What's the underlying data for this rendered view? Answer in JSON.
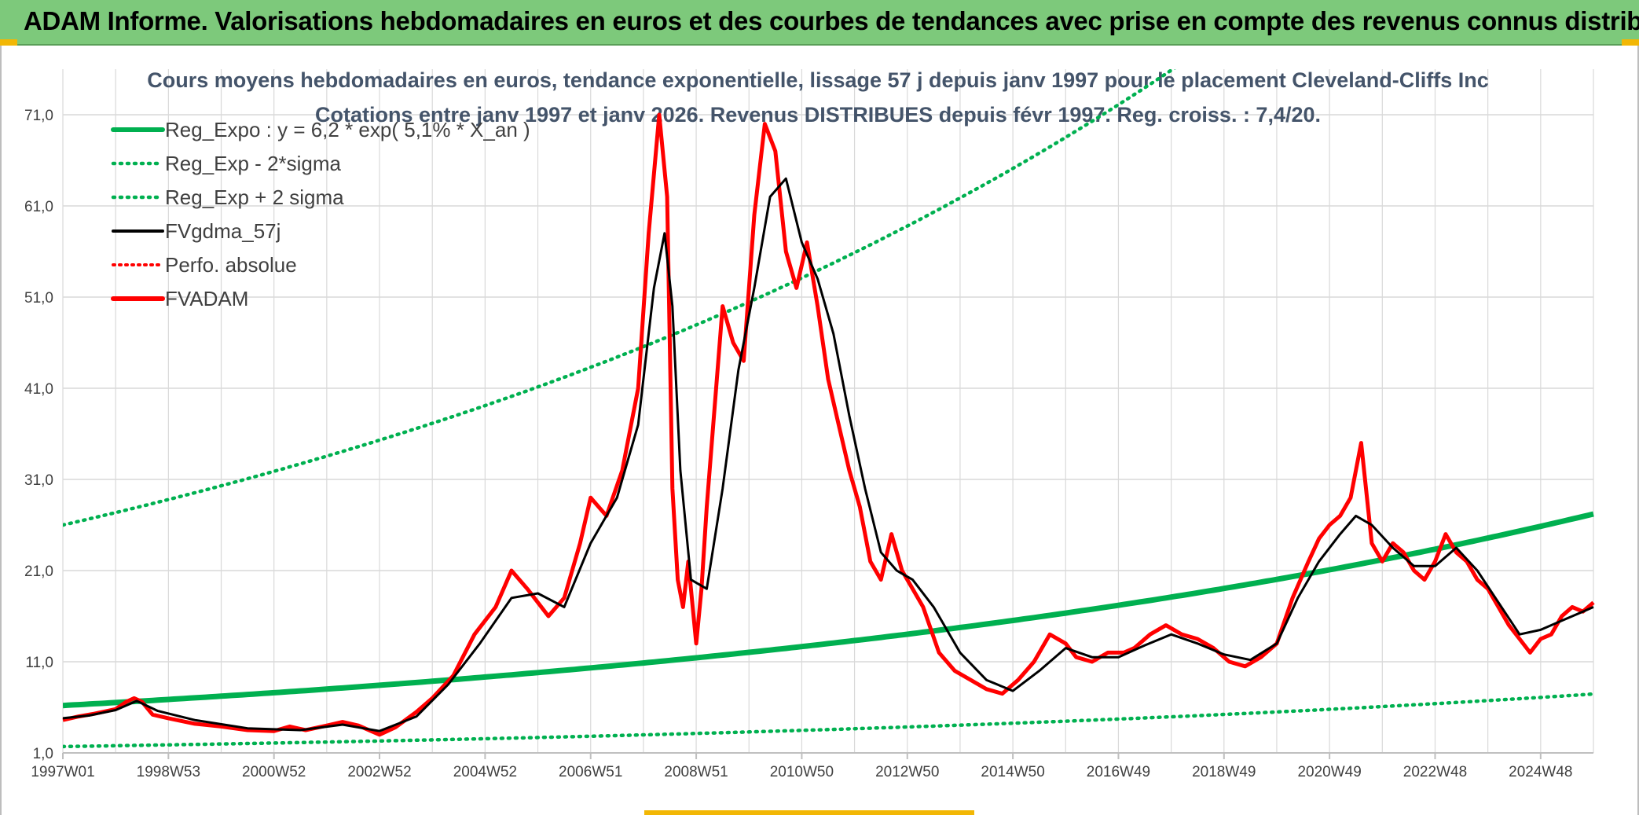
{
  "banner": {
    "title": "ADAM Informe. Valorisations hebdomadaires en euros et des courbes de tendances avec prise en compte des revenus connus distribués"
  },
  "colors": {
    "banner_bg": "#7dc97b",
    "reg_expo": "#00b050",
    "sigma_lines": "#00b050",
    "fvgdma": "#000000",
    "perfo": "#ff0000",
    "fvadam": "#ff0000",
    "grid": "#d9d9d9"
  },
  "chart_data": {
    "type": "line",
    "title": "Cours moyens hebdomadaires en euros, tendance exponentielle, lissage 57 j depuis janv 1997 pour le placement Cleveland-Cliffs Inc",
    "subtitle": "Cotations entre janv 1997 et janv 2026. Revenus DISTRIBUES depuis févr 1997. Reg. croiss. : 7,4/20.",
    "xlabel": "",
    "ylabel": "",
    "xlim": [
      1997.0,
      2026.0
    ],
    "ylim": [
      1.0,
      76.0
    ],
    "y_ticks": [
      "1,0",
      "11,0",
      "21,0",
      "31,0",
      "41,0",
      "51,0",
      "61,0",
      "71,0"
    ],
    "y_tick_values": [
      1,
      11,
      21,
      31,
      41,
      51,
      61,
      71
    ],
    "x_ticks": [
      "1997W01",
      "1998W53",
      "2000W52",
      "2002W52",
      "2004W52",
      "2006W51",
      "2008W51",
      "2010W50",
      "2012W50",
      "2014W50",
      "2016W49",
      "2018W49",
      "2020W49",
      "2022W48",
      "2024W48"
    ],
    "x_tick_values": [
      1997.0,
      1999.0,
      2001.0,
      2003.0,
      2005.0,
      2007.0,
      2009.0,
      2011.0,
      2013.0,
      2015.0,
      2017.0,
      2019.0,
      2021.0,
      2023.0,
      2025.0
    ],
    "legend": [
      {
        "name": "Reg_Expo : y = 6,2 * exp( 5,1% *  X_an )",
        "style": "solid-green"
      },
      {
        "name": "Reg_Exp - 2*sigma",
        "style": "dotted-green"
      },
      {
        "name": "Reg_Exp + 2 sigma",
        "style": "dotted-green"
      },
      {
        "name": "FVgdma_57j",
        "style": "solid-black"
      },
      {
        "name": "Perfo. absolue",
        "style": "dotted-red"
      },
      {
        "name": "FVADAM",
        "style": "solid-red"
      }
    ],
    "legend_position": "top-left",
    "regression": {
      "a": 6.2,
      "rate": 0.051,
      "x0": 1997.0,
      "lower_a": 1.7,
      "upper_a": 26.0
    },
    "series": [
      {
        "name": "FVADAM",
        "x": [
          1997.0,
          1997.3,
          1997.6,
          1998.0,
          1998.2,
          1998.35,
          1998.5,
          1998.7,
          1999.0,
          1999.5,
          2000.0,
          2000.5,
          2001.0,
          2001.3,
          2001.6,
          2002.0,
          2002.3,
          2002.6,
          2003.0,
          2003.3,
          2003.7,
          2004.0,
          2004.4,
          2004.8,
          2005.2,
          2005.5,
          2005.8,
          2006.2,
          2006.5,
          2006.8,
          2007.0,
          2007.3,
          2007.6,
          2007.9,
          2008.1,
          2008.3,
          2008.45,
          2008.55,
          2008.65,
          2008.75,
          2008.85,
          2009.0,
          2009.1,
          2009.2,
          2009.35,
          2009.5,
          2009.7,
          2009.9,
          2010.1,
          2010.3,
          2010.5,
          2010.7,
          2010.9,
          2011.1,
          2011.3,
          2011.5,
          2011.7,
          2011.9,
          2012.1,
          2012.3,
          2012.5,
          2012.7,
          2012.9,
          2013.1,
          2013.3,
          2013.6,
          2013.9,
          2014.2,
          2014.5,
          2014.8,
          2015.1,
          2015.4,
          2015.7,
          2016.0,
          2016.2,
          2016.5,
          2016.8,
          2017.1,
          2017.3,
          2017.6,
          2017.9,
          2018.2,
          2018.5,
          2018.8,
          2019.1,
          2019.4,
          2019.7,
          2020.0,
          2020.3,
          2020.6,
          2020.8,
          2021.0,
          2021.2,
          2021.4,
          2021.6,
          2021.8,
          2022.0,
          2022.2,
          2022.4,
          2022.6,
          2022.8,
          2023.0,
          2023.2,
          2023.4,
          2023.6,
          2023.8,
          2024.0,
          2024.2,
          2024.4,
          2024.6,
          2024.8,
          2025.0,
          2025.2,
          2025.4,
          2025.6,
          2025.8,
          2026.0
        ],
        "y": [
          4.6,
          5.0,
          5.3,
          5.8,
          6.6,
          7.0,
          6.6,
          5.2,
          4.8,
          4.2,
          3.9,
          3.5,
          3.4,
          3.9,
          3.5,
          4.0,
          4.4,
          4.0,
          3.0,
          3.8,
          5.5,
          7.0,
          9.5,
          14.0,
          17.0,
          21.0,
          19.0,
          16.0,
          18.0,
          24.0,
          29.0,
          27.0,
          32.0,
          41.0,
          58.0,
          71.0,
          62.0,
          30.0,
          20.0,
          17.0,
          22.0,
          13.0,
          19.0,
          28.0,
          39.0,
          50.0,
          46.0,
          44.0,
          60.0,
          70.0,
          67.0,
          56.0,
          52.0,
          57.0,
          50.0,
          42.0,
          37.0,
          32.0,
          28.0,
          22.0,
          20.0,
          25.0,
          21.0,
          19.0,
          17.0,
          12.0,
          10.0,
          9.0,
          8.0,
          7.5,
          9.0,
          11.0,
          14.0,
          13.0,
          11.5,
          11.0,
          12.0,
          12.0,
          12.5,
          14.0,
          15.0,
          14.0,
          13.5,
          12.5,
          11.0,
          10.5,
          11.5,
          13.0,
          18.0,
          22.0,
          24.5,
          26.0,
          27.0,
          29.0,
          35.0,
          24.0,
          22.0,
          24.0,
          23.0,
          21.0,
          20.0,
          22.0,
          25.0,
          23.0,
          22.0,
          20.0,
          19.0,
          17.0,
          15.0,
          13.5,
          12.0,
          13.5,
          14.0,
          16.0,
          17.0,
          16.5,
          17.5
        ]
      },
      {
        "name": "FVgdma_57j",
        "x": [
          1997.0,
          1997.5,
          1998.0,
          1998.4,
          1998.8,
          1999.5,
          2000.5,
          2001.5,
          2002.3,
          2003.0,
          2003.7,
          2004.3,
          2004.9,
          2005.5,
          2006.0,
          2006.5,
          2007.0,
          2007.5,
          2007.9,
          2008.2,
          2008.4,
          2008.55,
          2008.7,
          2008.9,
          2009.2,
          2009.5,
          2009.8,
          2010.1,
          2010.4,
          2010.7,
          2011.0,
          2011.3,
          2011.6,
          2011.9,
          2012.2,
          2012.5,
          2012.8,
          2013.1,
          2013.5,
          2014.0,
          2014.5,
          2015.0,
          2015.5,
          2016.0,
          2016.5,
          2017.0,
          2017.5,
          2018.0,
          2018.5,
          2019.0,
          2019.5,
          2020.0,
          2020.4,
          2020.8,
          2021.2,
          2021.5,
          2021.8,
          2022.2,
          2022.6,
          2023.0,
          2023.4,
          2023.8,
          2024.2,
          2024.6,
          2025.0,
          2025.4,
          2025.8,
          2026.0
        ],
        "y": [
          4.8,
          5.1,
          5.7,
          6.7,
          5.6,
          4.6,
          3.7,
          3.5,
          4.1,
          3.4,
          5.0,
          8.5,
          13.0,
          18.0,
          18.5,
          17.0,
          24.0,
          29.0,
          37.0,
          52.0,
          58.0,
          50.0,
          32.0,
          20.0,
          19.0,
          30.0,
          43.0,
          52.0,
          62.0,
          64.0,
          57.0,
          53.0,
          47.0,
          38.0,
          30.0,
          23.0,
          21.0,
          20.0,
          17.0,
          12.0,
          9.0,
          7.8,
          10.0,
          12.5,
          11.5,
          11.5,
          12.8,
          14.0,
          13.0,
          11.8,
          11.2,
          13.0,
          18.0,
          22.0,
          25.0,
          27.0,
          26.0,
          23.5,
          21.5,
          21.5,
          23.5,
          21.0,
          17.5,
          14.0,
          14.5,
          15.5,
          16.5,
          17.0
        ]
      }
    ]
  }
}
